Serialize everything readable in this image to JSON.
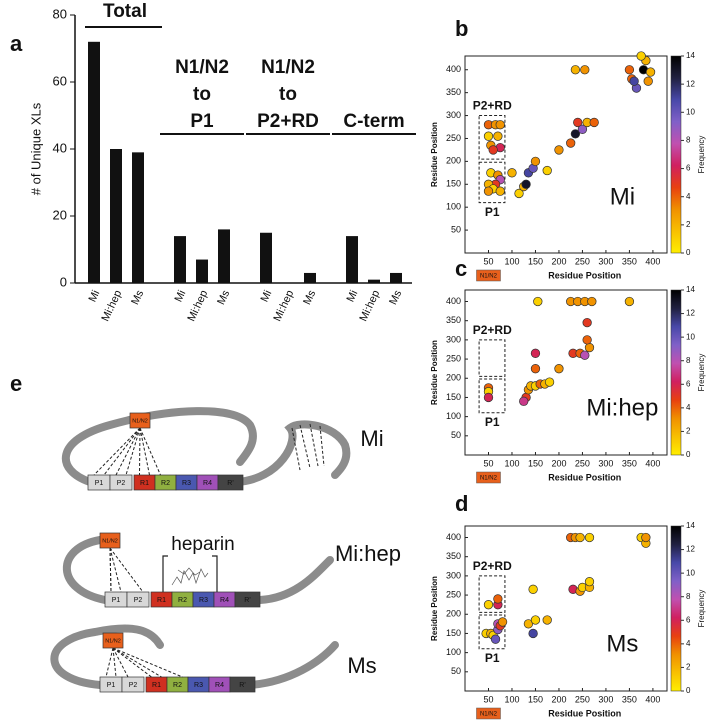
{
  "chart_data": [
    {
      "type": "bar",
      "panel": "a",
      "ylabel": "# of Unique XLs",
      "categories": [
        "Mi",
        "Mi:hep",
        "Ms",
        "Mi",
        "Mi:hep",
        "Ms",
        "Mi",
        "Mi:hep",
        "Ms",
        "Mi",
        "Mi:hep",
        "Ms"
      ],
      "values": [
        72,
        40,
        39,
        14,
        7,
        16,
        15,
        0,
        3,
        14,
        1,
        3
      ],
      "color": "#111111",
      "ylim": [
        0,
        80
      ],
      "yticks": [
        0,
        20,
        40,
        60,
        80
      ],
      "group_labels": [
        [
          "Total"
        ],
        [
          "N1/N2",
          "to",
          "P1"
        ],
        [
          "N1/N2",
          "to",
          "P2+RD"
        ],
        [
          "C-term"
        ]
      ]
    },
    {
      "type": "scatter",
      "panel": "b",
      "xlabel": "Residue Position",
      "ylabel": "Residue Position",
      "x": [
        50,
        65,
        75,
        50,
        70,
        55,
        75,
        60,
        55,
        70,
        75,
        65,
        50,
        60,
        75,
        50,
        100,
        115,
        125,
        135,
        130,
        145,
        150,
        175,
        200,
        225,
        235,
        240,
        250,
        260,
        275,
        235,
        255,
        350,
        355,
        365,
        380,
        385,
        375,
        360,
        395,
        390
      ],
      "values": [
        280,
        280,
        280,
        255,
        255,
        235,
        230,
        225,
        175,
        170,
        160,
        150,
        150,
        140,
        135,
        135,
        175,
        130,
        145,
        175,
        150,
        185,
        200,
        180,
        225,
        240,
        260,
        285,
        270,
        285,
        285,
        400,
        400,
        400,
        380,
        360,
        400,
        420,
        430,
        375,
        395,
        375
      ],
      "frequency": [
        4,
        3,
        3,
        1,
        2,
        3,
        6,
        5,
        1,
        3,
        8,
        5,
        2,
        1,
        2,
        3,
        2,
        1,
        2,
        11,
        13,
        10,
        3,
        1,
        3,
        4,
        13,
        5,
        9,
        2,
        4,
        2,
        3,
        4,
        4,
        10,
        14,
        2,
        1,
        11,
        2,
        3
      ],
      "xlim": [
        0,
        430
      ],
      "ylim": [
        0,
        430
      ],
      "xticks": [
        50,
        100,
        150,
        200,
        250,
        300,
        350,
        400
      ],
      "yticks": [
        50,
        100,
        150,
        200,
        250,
        300,
        350,
        400
      ],
      "colorbar": {
        "label": "Frequency",
        "lim": [
          0,
          14
        ],
        "ticks": [
          0,
          2,
          4,
          6,
          8,
          10,
          12,
          14
        ],
        "colors": [
          "#ffee00",
          "#f8c000",
          "#f09000",
          "#e84010",
          "#d02060",
          "#c050b0",
          "#8060c8",
          "#4848a8",
          "#202040",
          "#000000"
        ]
      },
      "annotations": [
        "P2+RD",
        "P1",
        "Mi",
        "N1/N2"
      ]
    },
    {
      "type": "scatter",
      "panel": "c",
      "xlabel": "Residue Position",
      "ylabel": "Residue Position",
      "x": [
        50,
        50,
        50,
        130,
        125,
        135,
        140,
        150,
        160,
        170,
        180,
        150,
        150,
        200,
        155,
        225,
        240,
        255,
        270,
        230,
        245,
        255,
        265,
        260,
        350,
        260
      ],
      "values": [
        175,
        165,
        150,
        150,
        140,
        170,
        180,
        180,
        185,
        185,
        190,
        265,
        225,
        225,
        400,
        400,
        400,
        400,
        400,
        265,
        265,
        260,
        280,
        345,
        400,
        300
      ],
      "frequency": [
        4,
        1,
        6,
        5,
        7,
        3,
        2,
        1,
        4,
        2,
        1,
        6,
        4,
        3,
        1,
        3,
        3,
        3,
        3,
        5,
        4,
        8,
        3,
        5,
        2,
        4
      ],
      "xlim": [
        0,
        430
      ],
      "ylim": [
        0,
        430
      ],
      "xticks": [
        50,
        100,
        150,
        200,
        250,
        300,
        350,
        400
      ],
      "yticks": [
        50,
        100,
        150,
        200,
        250,
        300,
        350,
        400
      ],
      "colorbar": {
        "label": "Frequency",
        "lim": [
          0,
          14
        ],
        "ticks": [
          0,
          2,
          4,
          6,
          8,
          10,
          12,
          14
        ],
        "colors": [
          "#ffee00",
          "#f8c000",
          "#f09000",
          "#e84010",
          "#d02060",
          "#c050b0",
          "#8060c8",
          "#4848a8",
          "#202040",
          "#000000"
        ]
      },
      "annotations": [
        "P2+RD",
        "P1",
        "Mi:hep",
        "N1/N2"
      ]
    },
    {
      "type": "scatter",
      "panel": "d",
      "xlabel": "Residue Position",
      "ylabel": "Residue Position",
      "x": [
        50,
        70,
        70,
        45,
        55,
        60,
        70,
        70,
        75,
        80,
        65,
        135,
        145,
        150,
        145,
        175,
        225,
        235,
        245,
        265,
        230,
        245,
        250,
        265,
        265,
        375,
        385,
        385
      ],
      "values": [
        225,
        225,
        240,
        150,
        150,
        145,
        160,
        175,
        170,
        180,
        135,
        175,
        150,
        185,
        265,
        185,
        400,
        400,
        400,
        400,
        265,
        260,
        270,
        270,
        285,
        400,
        385,
        400
      ],
      "frequency": [
        1,
        6,
        4,
        1,
        2,
        1,
        9,
        8,
        5,
        3,
        10,
        2,
        11,
        1,
        1,
        2,
        4,
        3,
        2,
        1,
        6,
        3,
        1,
        2,
        1,
        1,
        2,
        3
      ],
      "xlim": [
        0,
        430
      ],
      "ylim": [
        0,
        430
      ],
      "xticks": [
        50,
        100,
        150,
        200,
        250,
        300,
        350,
        400
      ],
      "yticks": [
        50,
        100,
        150,
        200,
        250,
        300,
        350,
        400
      ],
      "colorbar": {
        "label": "Frequency",
        "lim": [
          0,
          14
        ],
        "ticks": [
          0,
          2,
          4,
          6,
          8,
          10,
          12,
          14
        ],
        "colors": [
          "#ffee00",
          "#f8c000",
          "#f09000",
          "#e84010",
          "#d02060",
          "#c050b0",
          "#8060c8",
          "#4848a8",
          "#202040",
          "#000000"
        ]
      },
      "annotations": [
        "P2+RD",
        "P1",
        "Ms",
        "N1/N2"
      ]
    }
  ],
  "diagram": {
    "panel": "e",
    "ligand": "heparin",
    "constructs": [
      {
        "label": "Mi",
        "n_term": "N1/N2",
        "domains": [
          "P1",
          "P2",
          "R1",
          "R2",
          "R3",
          "R4",
          "R'"
        ]
      },
      {
        "label": "Mi:hep",
        "n_term": "N1/N2",
        "domains": [
          "P1",
          "P2",
          "R1",
          "R2",
          "R3",
          "R4",
          "R'"
        ]
      },
      {
        "label": "Ms",
        "n_term": "N1/N2",
        "domains": [
          "P1",
          "P2",
          "R1",
          "R2",
          "R3",
          "R4",
          "R'"
        ]
      }
    ]
  }
}
